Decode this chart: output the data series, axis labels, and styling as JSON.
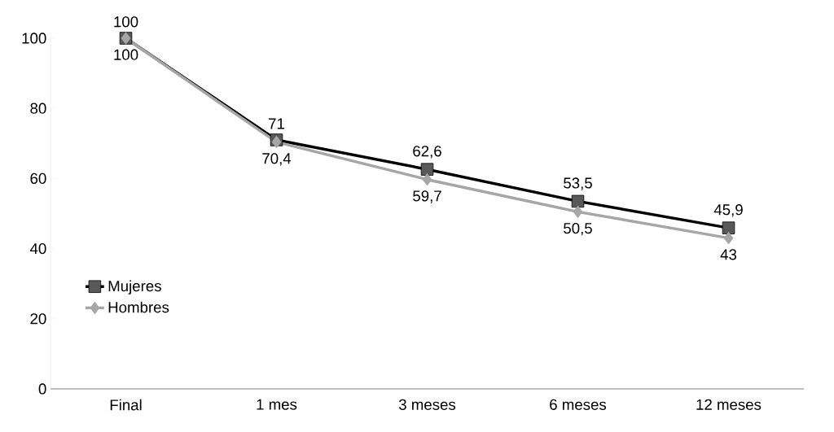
{
  "chart_data": {
    "type": "line",
    "categories": [
      "Final",
      "1 mes",
      "3 meses",
      "6 meses",
      "12 meses"
    ],
    "series": [
      {
        "name": "Mujeres",
        "color": "#000000",
        "marker": "square",
        "values": [
          100,
          71,
          62.6,
          53.5,
          45.9
        ],
        "value_labels": [
          "100",
          "71",
          "62,6",
          "53,5",
          "45,9"
        ]
      },
      {
        "name": "Hombres",
        "color": "#a6a6a6",
        "marker": "diamond",
        "values": [
          100,
          70.4,
          59.7,
          50.5,
          43
        ],
        "value_labels": [
          "100",
          "70,4",
          "59,7",
          "50,5",
          "43"
        ]
      }
    ],
    "ylim": [
      0,
      100
    ],
    "yticks": [
      0,
      20,
      40,
      60,
      80,
      100
    ],
    "grid": false,
    "legend": "bottom left"
  }
}
